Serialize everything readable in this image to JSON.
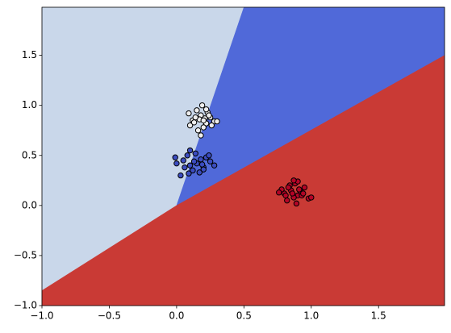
{
  "chart_data": {
    "type": "scatter",
    "xlim": [
      -1,
      1.99
    ],
    "ylim": [
      -1,
      1.98
    ],
    "xticks": [
      {
        "value": -1,
        "label": "−1.0"
      },
      {
        "value": -0.5,
        "label": "−0.5"
      },
      {
        "value": 0,
        "label": "0.0"
      },
      {
        "value": 0.5,
        "label": "0.5"
      },
      {
        "value": 1,
        "label": "1.0"
      },
      {
        "value": 1.5,
        "label": "1.5"
      }
    ],
    "yticks": [
      {
        "value": -1,
        "label": "−1.0"
      },
      {
        "value": -0.5,
        "label": "−0.5"
      },
      {
        "value": 0,
        "label": "0.0"
      },
      {
        "value": 0.5,
        "label": "0.5"
      },
      {
        "value": 1,
        "label": "1.0"
      },
      {
        "value": 1.5,
        "label": "1.5"
      }
    ],
    "regions": [
      {
        "color": "#c9d7ea",
        "x": [
          -1,
          0,
          0.5,
          -1
        ],
        "y": [
          -0.85,
          0,
          1.98,
          1.98
        ]
      },
      {
        "color": "#5069d9",
        "x": [
          0,
          0.5,
          1.99,
          1.99
        ],
        "y": [
          0,
          1.98,
          1.98,
          1.5
        ]
      },
      {
        "color": "#c93a35",
        "x": [
          -1,
          -1,
          0,
          1.99,
          1.99
        ],
        "y": [
          -1,
          -0.85,
          0,
          1.5,
          -1
        ]
      }
    ],
    "series": [
      {
        "color": "#eeeeee",
        "x": [
          0.12,
          0.18,
          0.22,
          0.15,
          0.25,
          0.2,
          0.1,
          0.28,
          0.17,
          0.23,
          0.14,
          0.19,
          0.26,
          0.21,
          0.16,
          0.09,
          0.24,
          0.2,
          0.13,
          0.3,
          0.18,
          0.22
        ],
        "y": [
          0.85,
          0.9,
          0.82,
          0.95,
          0.88,
          0.78,
          0.8,
          0.84,
          0.86,
          0.93,
          0.88,
          1.0,
          0.8,
          0.87,
          0.75,
          0.92,
          0.9,
          0.85,
          0.83,
          0.84,
          0.7,
          0.96
        ]
      },
      {
        "color": "#3b4cc0",
        "x": [
          0.05,
          0.1,
          0.15,
          0.2,
          0.25,
          0.08,
          0.12,
          0.18,
          0.22,
          0.0,
          0.03,
          0.28,
          0.14,
          0.17,
          0.1,
          0.2,
          0.06,
          0.24,
          0.13,
          0.19,
          -0.01,
          0.09
        ],
        "y": [
          0.45,
          0.4,
          0.42,
          0.38,
          0.44,
          0.5,
          0.35,
          0.46,
          0.48,
          0.42,
          0.3,
          0.4,
          0.52,
          0.33,
          0.55,
          0.36,
          0.38,
          0.5,
          0.44,
          0.41,
          0.48,
          0.32
        ]
      },
      {
        "color": "#b40426",
        "x": [
          0.8,
          0.85,
          0.9,
          0.95,
          0.88,
          0.82,
          0.92,
          0.87,
          0.78,
          0.98,
          0.84,
          0.9,
          0.86,
          0.93,
          0.76,
          0.89,
          1.0,
          0.83,
          0.91,
          0.87,
          0.94,
          0.81
        ],
        "y": [
          0.12,
          0.15,
          0.1,
          0.18,
          0.22,
          0.05,
          0.14,
          0.08,
          0.16,
          0.07,
          0.2,
          0.24,
          0.12,
          0.1,
          0.13,
          0.02,
          0.08,
          0.18,
          0.16,
          0.25,
          0.12,
          0.1
        ]
      }
    ]
  }
}
